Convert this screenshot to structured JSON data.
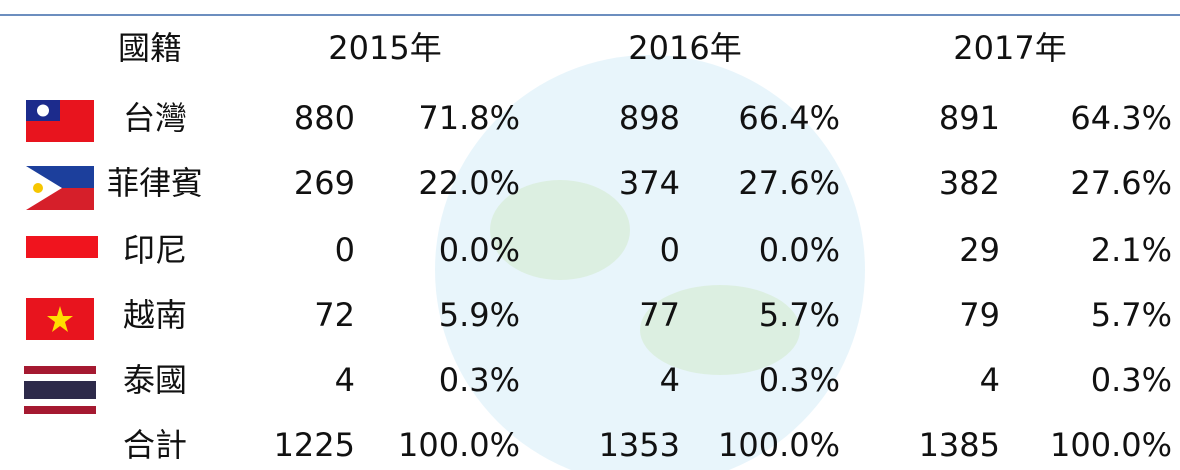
{
  "table": {
    "header": [
      "國籍",
      "2015年",
      "2016年",
      "2017年"
    ],
    "rows": [
      [
        "台灣",
        880,
        "71.8%",
        898,
        "66.4%",
        891,
        "64.3%"
      ],
      [
        "菲律賓",
        269,
        "22.0%",
        374,
        "27.6%",
        382,
        "27.6%"
      ],
      [
        "印尼",
        0,
        "0.0%",
        0,
        "0.0%",
        29,
        "2.1%"
      ],
      [
        "越南",
        72,
        "5.9%",
        77,
        "5.7%",
        79,
        "5.7%"
      ],
      [
        "泰國",
        4,
        "0.3%",
        4,
        "0.3%",
        4,
        "0.3%"
      ],
      [
        "合計",
        1225,
        "100.0%",
        1353,
        "100.0%",
        1385,
        "100.0%"
      ]
    ]
  }
}
